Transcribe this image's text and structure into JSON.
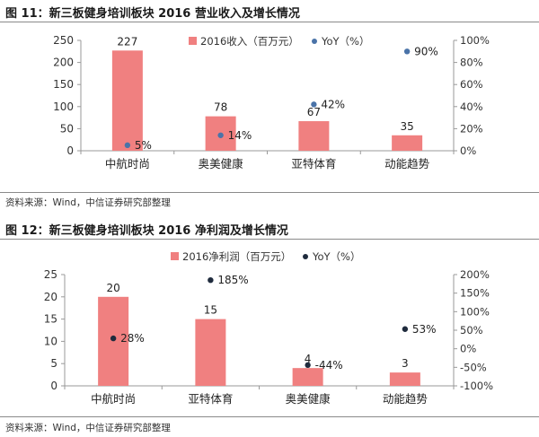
{
  "figures": [
    {
      "title": "图 11：新三板健身培训板块 2016 营业收入及增长情况",
      "source": "资料来源：Wind，中信证券研究部整理"
    },
    {
      "title": "图 12：新三板健身培训板块 2016 净利润及增长情况",
      "source": "资料来源：Wind，中信证券研究部整理"
    }
  ],
  "chart_data": [
    {
      "type": "bar",
      "categories": [
        "中航时尚",
        "奥美健康",
        "亚特体育",
        "动能趋势"
      ],
      "series": [
        {
          "name": "2016收入（百万元）",
          "type": "bar",
          "axis": "left",
          "values": [
            227,
            78,
            67,
            35
          ],
          "labels": [
            "227",
            "78",
            "67",
            "35"
          ],
          "color": "#f08080"
        },
        {
          "name": "YoY（%）",
          "type": "scatter",
          "axis": "right",
          "values": [
            5,
            14,
            42,
            90
          ],
          "labels": [
            "5%",
            "14%",
            "42%",
            "90%"
          ],
          "color": "#4a73a8"
        }
      ],
      "y_left": {
        "range": [
          0,
          250
        ],
        "ticks": [
          "0",
          "50",
          "100",
          "150",
          "200",
          "250"
        ]
      },
      "y_right": {
        "range": [
          0,
          100
        ],
        "ticks": [
          "0%",
          "20%",
          "40%",
          "60%",
          "80%",
          "100%"
        ]
      },
      "legend_position": "top",
      "grid": false
    },
    {
      "type": "bar",
      "categories": [
        "中航时尚",
        "亚特体育",
        "奥美健康",
        "动能趋势"
      ],
      "series": [
        {
          "name": "2016净利润（百万元）",
          "type": "bar",
          "axis": "left",
          "values": [
            20,
            15,
            4,
            3
          ],
          "labels": [
            "20",
            "15",
            "4",
            "3"
          ],
          "color": "#f08080"
        },
        {
          "name": "YoY（%）",
          "type": "scatter",
          "axis": "right",
          "values": [
            28,
            185,
            -44,
            53
          ],
          "labels": [
            "28%",
            "185%",
            "-44%",
            "53%"
          ],
          "color": "#1f2b3d"
        }
      ],
      "y_left": {
        "range": [
          0,
          25
        ],
        "ticks": [
          "0",
          "5",
          "10",
          "15",
          "20",
          "25"
        ]
      },
      "y_right": {
        "range": [
          -100,
          200
        ],
        "ticks": [
          "-100%",
          "-50%",
          "0%",
          "50%",
          "100%",
          "150%",
          "200%"
        ]
      },
      "legend_position": "top",
      "grid": false
    }
  ]
}
